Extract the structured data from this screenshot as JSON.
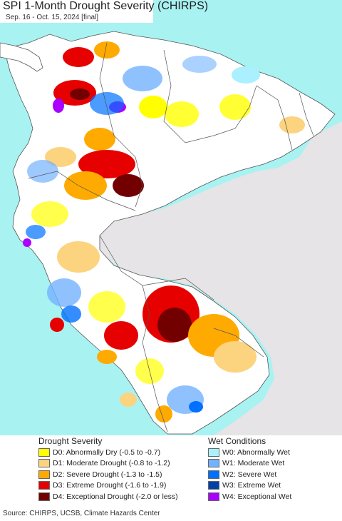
{
  "title": "SPI 1-Month Drought Severity (CHIRPS)",
  "subtitle": "Sep. 16 - Oct. 15, 2024 [final]",
  "colors": {
    "ocean": "#a8f2f2",
    "land": "#ffffff",
    "no_data": "#e6e4e6",
    "border": "#555555"
  },
  "legend": {
    "drought": {
      "heading": "Drought Severity",
      "items": [
        {
          "code": "D0",
          "label": "D0: Abnormally Dry (-0.5 to -0.7)",
          "color": "#ffff00"
        },
        {
          "code": "D1",
          "label": "D1: Moderate Drought (-0.8 to -1.2)",
          "color": "#fcd37f"
        },
        {
          "code": "D2",
          "label": "D2: Severe Drought (-1.3 to -1.5)",
          "color": "#ffaa00"
        },
        {
          "code": "D3",
          "label": "D3: Extreme Drought (-1.6 to -1.9)",
          "color": "#e60000"
        },
        {
          "code": "D4",
          "label": "D4: Exceptional Drought (-2.0 or less)",
          "color": "#730000"
        }
      ]
    },
    "wet": {
      "heading": "Wet Conditions",
      "items": [
        {
          "code": "W0",
          "label": "W0: Abnormally Wet",
          "color": "#aaf0ff"
        },
        {
          "code": "W1",
          "label": "W1: Moderate Wet",
          "color": "#73b2ff"
        },
        {
          "code": "W2",
          "label": "W2: Severe Wet",
          "color": "#0070ff"
        },
        {
          "code": "W3",
          "label": "W3: Extreme Wet",
          "color": "#0040aa"
        },
        {
          "code": "W4",
          "label": "W4: Exceptional Wet",
          "color": "#aa00ff"
        }
      ]
    }
  },
  "source": "Source: CHIRPS, UCSB, Climate Hazards Center"
}
